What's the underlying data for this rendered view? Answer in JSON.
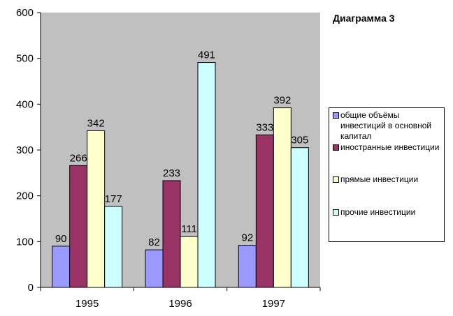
{
  "chart_data": {
    "type": "bar",
    "title": "Диаграмма 3",
    "categories": [
      "1995",
      "1996",
      "1997"
    ],
    "ylim": [
      0,
      600
    ],
    "yticks": [
      "0",
      "100",
      "200",
      "300",
      "400",
      "500",
      "600"
    ],
    "grid": false,
    "plot_background": "#c0c0c0",
    "legend_position": "right",
    "series": [
      {
        "name": "общие объёмы инвестиций в основной капитал",
        "color": "#9999ff",
        "values": [
          90,
          82,
          92
        ]
      },
      {
        "name": "иностранные инвестиции",
        "color": "#993366",
        "values": [
          266,
          233,
          333
        ]
      },
      {
        "name": "прямые инвестиции",
        "color": "#ffffcc",
        "values": [
          342,
          111,
          392
        ]
      },
      {
        "name": "прочие инвестиции",
        "color": "#ccffff",
        "values": [
          177,
          491,
          305
        ]
      }
    ]
  }
}
